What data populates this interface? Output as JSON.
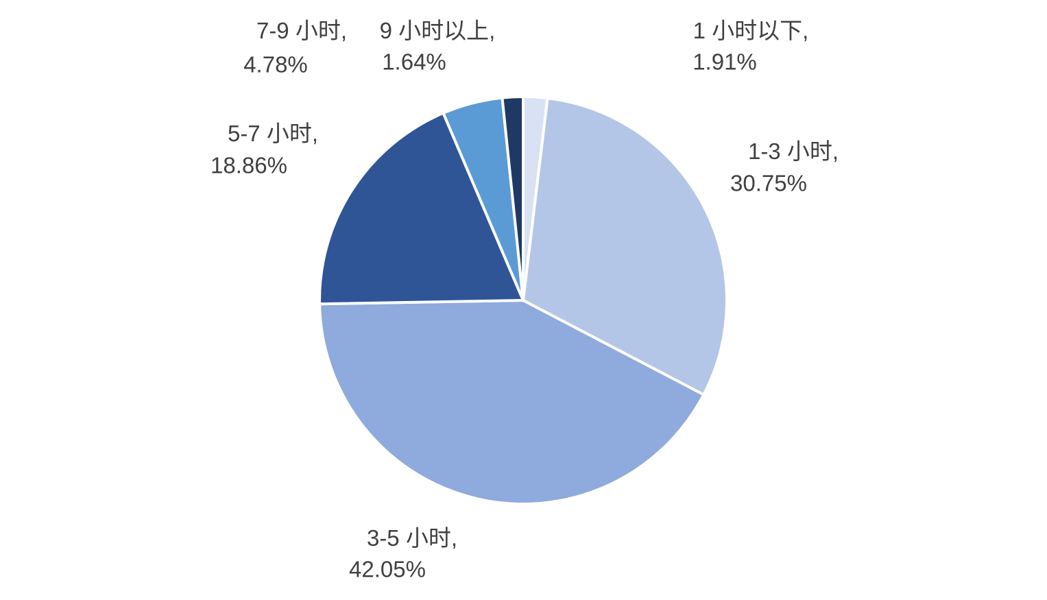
{
  "chart_data": {
    "type": "pie",
    "categories": [
      "1 小时以下",
      "1-3 小时",
      "3-5 小时",
      "5-7 小时",
      "7-9 小时",
      "9 小时以上"
    ],
    "values": [
      1.91,
      30.75,
      42.05,
      18.86,
      4.78,
      1.64
    ],
    "value_labels": [
      "1.91%",
      "30.75%",
      "42.05%",
      "18.86%",
      "4.78%",
      "1.64%"
    ],
    "label_separator": ",",
    "colors": [
      "#d9e2f3",
      "#b4c6e7",
      "#8faadc",
      "#2f5597",
      "#5b9bd5",
      "#203864"
    ]
  }
}
